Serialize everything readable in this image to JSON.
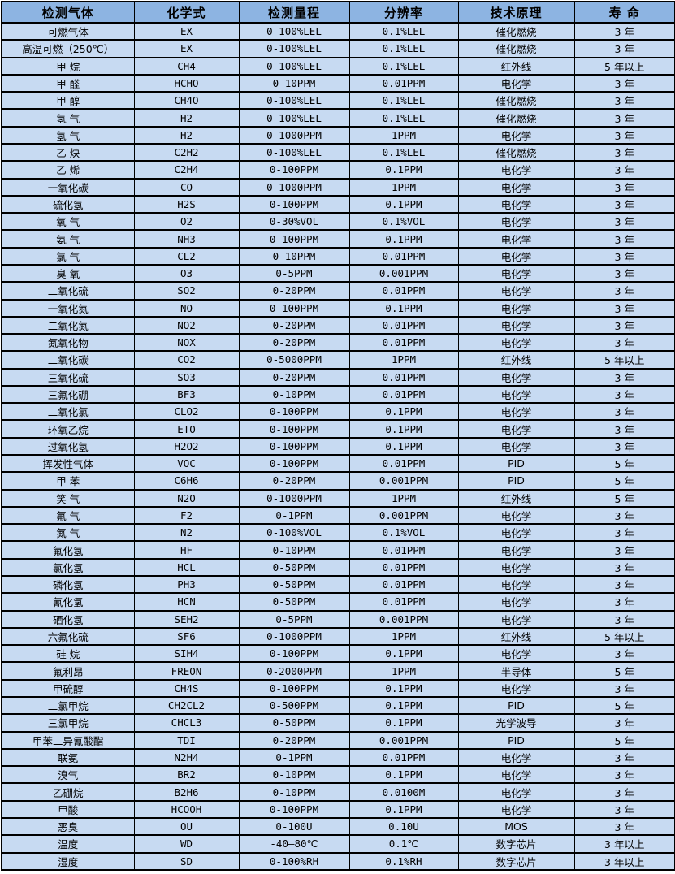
{
  "colors": {
    "header_bg": "#8DB4E2",
    "row_bg": "#C7DAF2",
    "border": "#000000",
    "text": "#000000"
  },
  "table": {
    "columns": [
      {
        "key": "gas-name",
        "label": "检测气体"
      },
      {
        "key": "formula",
        "label": "化学式"
      },
      {
        "key": "range",
        "label": "检测量程"
      },
      {
        "key": "resolution",
        "label": "分辨率"
      },
      {
        "key": "principle",
        "label": "技术原理"
      },
      {
        "key": "lifespan",
        "label": "寿 命"
      }
    ],
    "rows": [
      [
        "可燃气体",
        "EX",
        "0-100%LEL",
        "0.1%LEL",
        "催化燃烧",
        "3 年"
      ],
      [
        "高温可燃（250℃）",
        "EX",
        "0-100%LEL",
        "0.1%LEL",
        "催化燃烧",
        "3 年"
      ],
      [
        "甲 烷",
        "CH4",
        "0-100%LEL",
        "0.1%LEL",
        "红外线",
        "5 年以上"
      ],
      [
        "甲 醛",
        "HCHO",
        "0-10PPM",
        "0.01PPM",
        "电化学",
        "3 年"
      ],
      [
        "甲 醇",
        "CH4O",
        "0-100%LEL",
        "0.1%LEL",
        "催化燃烧",
        "3 年"
      ],
      [
        "氢 气",
        "H2",
        "0-100%LEL",
        "0.1%LEL",
        "催化燃烧",
        "3 年"
      ],
      [
        "氢 气",
        "H2",
        "0-1000PPM",
        "1PPM",
        "电化学",
        "3 年"
      ],
      [
        "乙 炔",
        "C2H2",
        "0-100%LEL",
        "0.1%LEL",
        "催化燃烧",
        "3 年"
      ],
      [
        "乙 烯",
        "C2H4",
        "0-100PPM",
        "0.1PPM",
        "电化学",
        "3 年"
      ],
      [
        "一氧化碳",
        "CO",
        "0-1000PPM",
        "1PPM",
        "电化学",
        "3 年"
      ],
      [
        "硫化氢",
        "H2S",
        "0-100PPM",
        "0.1PPM",
        "电化学",
        "3 年"
      ],
      [
        "氧 气",
        "O2",
        "0-30%VOL",
        "0.1%VOL",
        "电化学",
        "3 年"
      ],
      [
        "氨 气",
        "NH3",
        "0-100PPM",
        "0.1PPM",
        "电化学",
        "3 年"
      ],
      [
        "氯 气",
        "CL2",
        "0-10PPM",
        "0.01PPM",
        "电化学",
        "3 年"
      ],
      [
        "臭 氧",
        "O3",
        "0-5PPM",
        "0.001PPM",
        "电化学",
        "3 年"
      ],
      [
        "二氧化硫",
        "SO2",
        "0-20PPM",
        "0.01PPM",
        "电化学",
        "3 年"
      ],
      [
        "一氧化氮",
        "NO",
        "0-100PPM",
        "0.1PPM",
        "电化学",
        "3 年"
      ],
      [
        "二氧化氮",
        "NO2",
        "0-20PPM",
        "0.01PPM",
        "电化学",
        "3 年"
      ],
      [
        "氮氧化物",
        "NOX",
        "0-20PPM",
        "0.01PPM",
        "电化学",
        "3 年"
      ],
      [
        "二氧化碳",
        "CO2",
        "0-5000PPM",
        "1PPM",
        "红外线",
        "5 年以上"
      ],
      [
        "三氧化硫",
        "SO3",
        "0-20PPM",
        "0.01PPM",
        "电化学",
        "3 年"
      ],
      [
        "三氟化硼",
        "BF3",
        "0-10PPM",
        "0.01PPM",
        "电化学",
        "3 年"
      ],
      [
        "二氧化氯",
        "CLO2",
        "0-100PPM",
        "0.1PPM",
        "电化学",
        "3 年"
      ],
      [
        "环氧乙烷",
        "ETO",
        "0-100PPM",
        "0.1PPM",
        "电化学",
        "3 年"
      ],
      [
        "过氧化氢",
        "H2O2",
        "0-100PPM",
        "0.1PPM",
        "电化学",
        "3 年"
      ],
      [
        "挥发性气体",
        "VOC",
        "0-100PPM",
        "0.01PPM",
        "PID",
        "5 年"
      ],
      [
        "甲 苯",
        "C6H6",
        "0-20PPM",
        "0.001PPM",
        "PID",
        "5 年"
      ],
      [
        "笑 气",
        "N2O",
        "0-1000PPM",
        "1PPM",
        "红外线",
        "5 年"
      ],
      [
        "氟 气",
        "F2",
        "0-1PPM",
        "0.001PPM",
        "电化学",
        "3 年"
      ],
      [
        "氮 气",
        "N2",
        "0-100%VOL",
        "0.1%VOL",
        "电化学",
        "3 年"
      ],
      [
        "氟化氢",
        "HF",
        "0-10PPM",
        "0.01PPM",
        "电化学",
        "3 年"
      ],
      [
        "氯化氢",
        "HCL",
        "0-50PPM",
        "0.01PPM",
        "电化学",
        "3 年"
      ],
      [
        "磷化氢",
        "PH3",
        "0-50PPM",
        "0.01PPM",
        "电化学",
        "3 年"
      ],
      [
        "氰化氢",
        "HCN",
        "0-50PPM",
        "0.01PPM",
        "电化学",
        "3 年"
      ],
      [
        "硒化氢",
        "SEH2",
        "0-5PPM",
        "0.001PPM",
        "电化学",
        "3 年"
      ],
      [
        "六氟化硫",
        "SF6",
        "0-1000PPM",
        "1PPM",
        "红外线",
        "5 年以上"
      ],
      [
        "硅 烷",
        "SIH4",
        "0-100PPM",
        "0.1PPM",
        "电化学",
        "3 年"
      ],
      [
        "氟利昂",
        "FREON",
        "0-2000PPM",
        "1PPM",
        "半导体",
        "5 年"
      ],
      [
        "甲硫醇",
        "CH4S",
        "0-100PPM",
        "0.1PPM",
        "电化学",
        "3 年"
      ],
      [
        "二氯甲烷",
        "CH2CL2",
        "0-500PPM",
        "0.1PPM",
        "PID",
        "5 年"
      ],
      [
        "三氯甲烷",
        "CHCL3",
        "0-50PPM",
        "0.1PPM",
        "光学波导",
        "3 年"
      ],
      [
        "甲苯二异氰酸酯",
        "TDI",
        "0-20PPM",
        "0.001PPM",
        "PID",
        "5 年"
      ],
      [
        "联氨",
        "N2H4",
        "0-1PPM",
        "0.01PPM",
        "电化学",
        "3 年"
      ],
      [
        "溴气",
        "BR2",
        "0-10PPM",
        "0.1PPM",
        "电化学",
        "3 年"
      ],
      [
        "乙硼烷",
        "B2H6",
        "0-10PPM",
        "0.0100M",
        "电化学",
        "3 年"
      ],
      [
        "甲酸",
        "HCOOH",
        "0-100PPM",
        "0.1PPM",
        "电化学",
        "3 年"
      ],
      [
        "恶臭",
        "OU",
        "0-100U",
        "0.10U",
        "MOS",
        "3 年"
      ],
      [
        "温度",
        "WD",
        "-40—80℃",
        "0.1℃",
        "数字芯片",
        "3 年以上"
      ],
      [
        "湿度",
        "SD",
        "0-100%RH",
        "0.1%RH",
        "数字芯片",
        "3 年以上"
      ]
    ]
  }
}
